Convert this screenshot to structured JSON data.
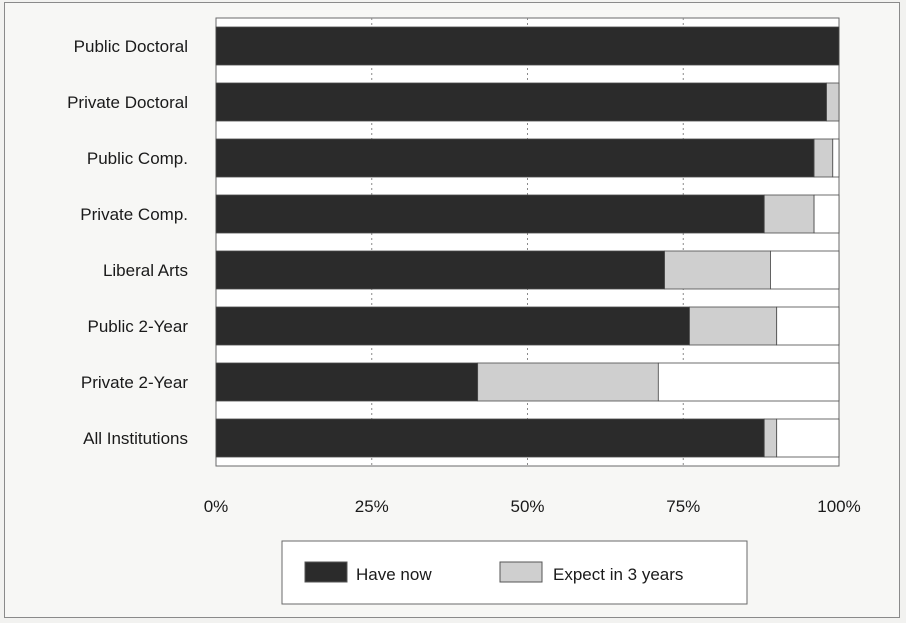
{
  "chart_data": {
    "type": "bar",
    "orientation": "horizontal",
    "stacked": true,
    "categories": [
      "Public Doctoral",
      "Private Doctoral",
      "Public Comp.",
      "Private Comp.",
      "Liberal Arts",
      "Public 2-Year",
      "Private 2-Year",
      "All Institutions"
    ],
    "series": [
      {
        "name": "Have now",
        "color": "#2b2b2b",
        "values": [
          100,
          98,
          96,
          88,
          72,
          76,
          42,
          88
        ]
      },
      {
        "name": "Expect in 3 years",
        "color": "#cfcfcf",
        "values": [
          0,
          2,
          3,
          8,
          17,
          14,
          29,
          2
        ]
      }
    ],
    "xlim": [
      0,
      100
    ],
    "x_ticks": [
      "0%",
      "25%",
      "50%",
      "75%",
      "100%"
    ],
    "grid": "vertical dotted",
    "legend_position": "bottom-center",
    "title": "",
    "xlabel": "",
    "ylabel": ""
  }
}
